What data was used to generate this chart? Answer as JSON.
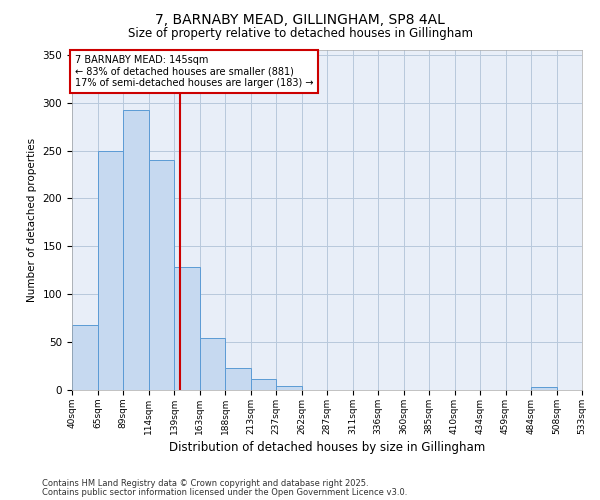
{
  "title": "7, BARNABY MEAD, GILLINGHAM, SP8 4AL",
  "subtitle": "Size of property relative to detached houses in Gillingham",
  "xlabel": "Distribution of detached houses by size in Gillingham",
  "ylabel": "Number of detached properties",
  "bar_values": [
    68,
    250,
    292,
    240,
    128,
    54,
    23,
    11,
    4,
    0,
    0,
    0,
    0,
    0,
    0,
    0,
    0,
    0,
    3,
    0
  ],
  "bar_labels": [
    "40sqm",
    "65sqm",
    "89sqm",
    "114sqm",
    "139sqm",
    "163sqm",
    "188sqm",
    "213sqm",
    "237sqm",
    "262sqm",
    "287sqm",
    "311sqm",
    "336sqm",
    "360sqm",
    "385sqm",
    "410sqm",
    "434sqm",
    "459sqm",
    "484sqm",
    "508sqm",
    "533sqm"
  ],
  "bar_color": "#c6d9f0",
  "bar_edge_color": "#5b9bd5",
  "vline_color": "#cc0000",
  "annotation_line1": "7 BARNABY MEAD: 145sqm",
  "annotation_line2": "← 83% of detached houses are smaller (881)",
  "annotation_line3": "17% of semi-detached houses are larger (183) →",
  "ylim": [
    0,
    355
  ],
  "yticks": [
    0,
    50,
    100,
    150,
    200,
    250,
    300,
    350
  ],
  "background_color": "#e8eef8",
  "footer_line1": "Contains HM Land Registry data © Crown copyright and database right 2025.",
  "footer_line2": "Contains public sector information licensed under the Open Government Licence v3.0."
}
